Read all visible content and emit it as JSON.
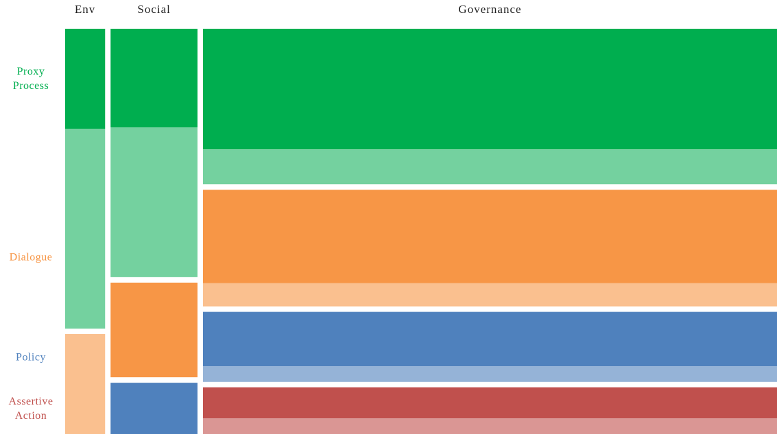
{
  "chart_data": {
    "type": "mosaic",
    "categories": [
      "Env",
      "Social",
      "Governance"
    ],
    "widths": [
      5.7,
      12.4,
      81.9
    ],
    "groups": [
      {
        "name": "Proxy Process",
        "colors": [
          "#00ae4f",
          "#74d19f"
        ]
      },
      {
        "name": "Dialogue",
        "colors": [
          "#f79646",
          "#fac08f"
        ]
      },
      {
        "name": "Policy",
        "colors": [
          "#4f81bd",
          "#95b3d7"
        ]
      },
      {
        "name": "Assertive Action",
        "colors": [
          "#c0504d",
          "#da9694"
        ]
      }
    ],
    "values": [
      [
        [
          25,
          50
        ],
        [
          0,
          25
        ],
        [
          0,
          0
        ],
        [
          0,
          0
        ]
      ],
      [
        [
          25,
          38
        ],
        [
          24,
          0
        ],
        [
          13,
          0
        ],
        [
          0,
          0
        ]
      ],
      [
        [
          31,
          9
        ],
        [
          24,
          6
        ],
        [
          14,
          4
        ],
        [
          8,
          4
        ]
      ]
    ]
  }
}
